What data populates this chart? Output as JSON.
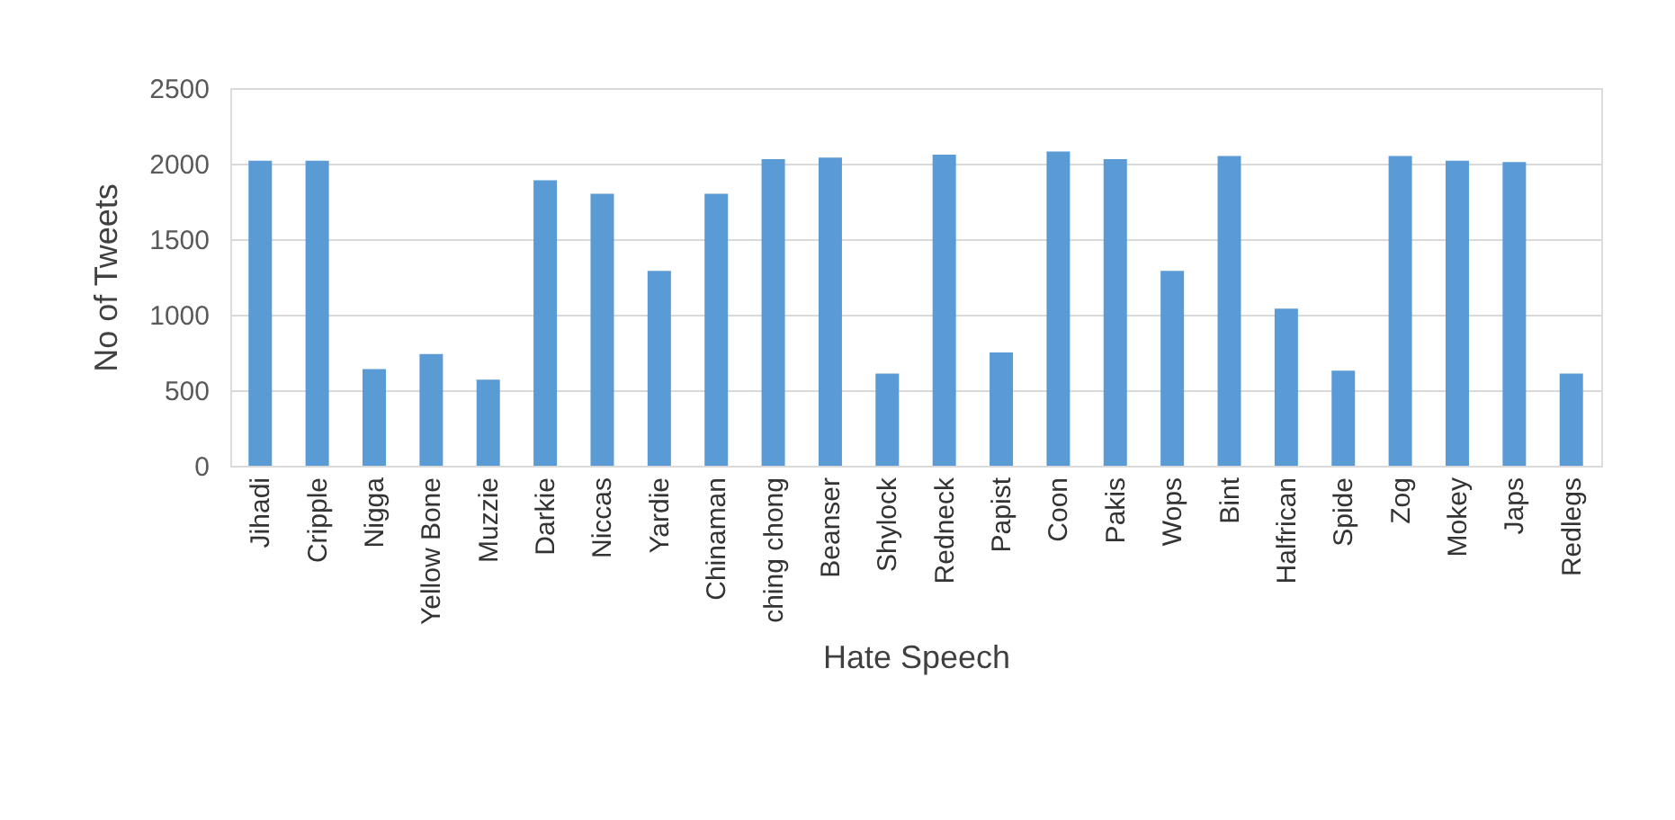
{
  "chart_data": {
    "type": "bar",
    "xlabel": "Hate Speech",
    "ylabel": "No of Tweets",
    "categories": [
      "Jihadi",
      "Cripple",
      "Nigga",
      "Yellow Bone",
      "Muzzie",
      "Darkie",
      "Niccas",
      "Yardie",
      "Chinaman",
      "ching chong",
      "Beanser",
      "Shylock",
      "Redneck",
      "Papist",
      "Coon",
      "Pakis",
      "Wops",
      "Bint",
      "Halfrican",
      "Spide",
      "Zog",
      "Mokey",
      "Japs",
      "Redlegs"
    ],
    "values": [
      2020,
      2020,
      640,
      740,
      570,
      1890,
      1800,
      1290,
      1800,
      2030,
      2040,
      610,
      2060,
      750,
      2080,
      2030,
      1290,
      2050,
      1040,
      630,
      2050,
      2020,
      2010,
      610
    ],
    "color": "#5b9bd5",
    "ylim": [
      0,
      2500
    ],
    "yticks": [
      0,
      500,
      1000,
      1500,
      2000,
      2500
    ],
    "grid": "y"
  }
}
